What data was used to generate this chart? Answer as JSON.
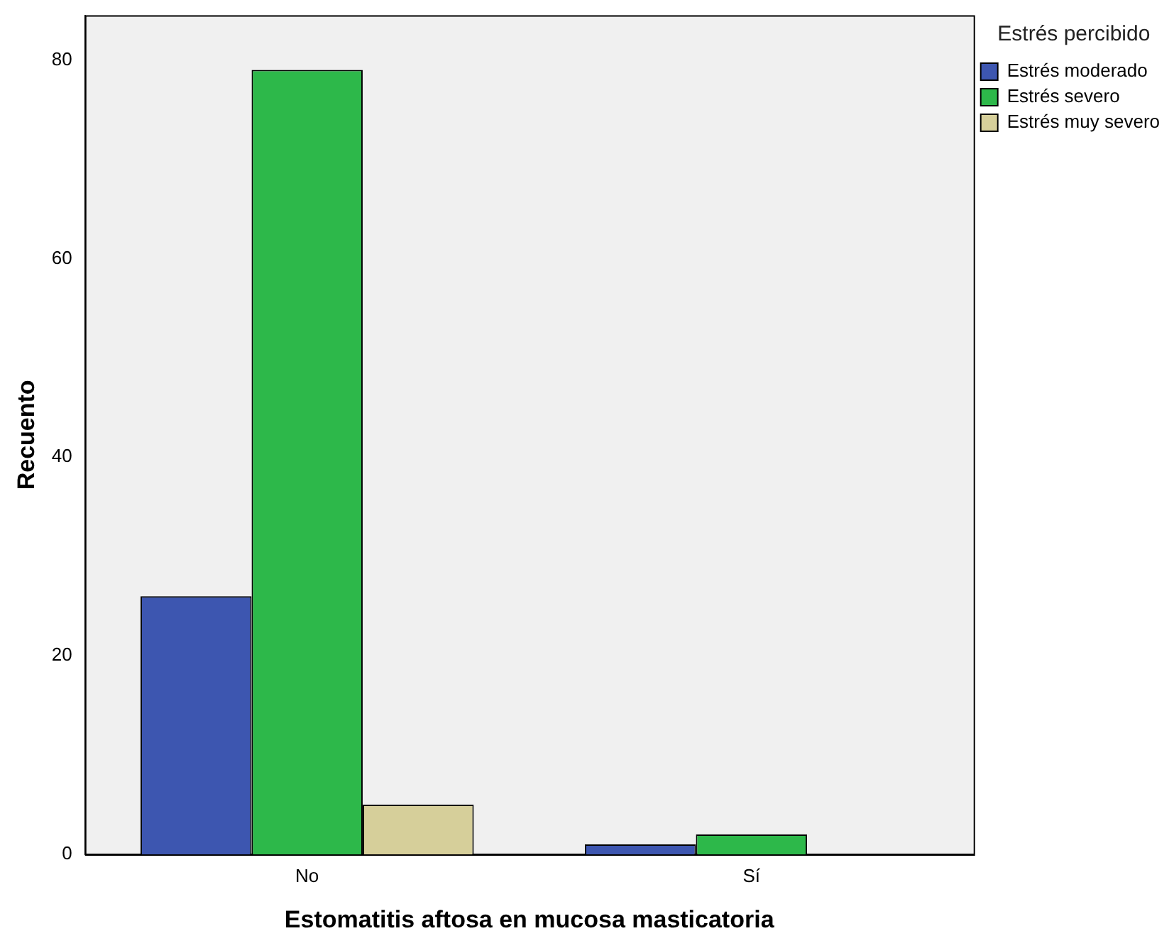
{
  "chart_data": {
    "type": "bar",
    "xlabel": "Estomatitis aftosa en mucosa masticatoria",
    "ylabel": "Recuento",
    "legend_title": "Estrés percibido",
    "categories": [
      "No",
      "Sí"
    ],
    "series": [
      {
        "name": "Estrés moderado",
        "color": "#3d56b0",
        "values": [
          26,
          1
        ]
      },
      {
        "name": "Estrés severo",
        "color": "#2db84a",
        "values": [
          79,
          2
        ]
      },
      {
        "name": "Estrés muy severo",
        "color": "#d6cf9a",
        "values": [
          5,
          0
        ]
      }
    ],
    "ylim": [
      0,
      84.5
    ],
    "yticks": [
      0,
      20,
      40,
      60,
      80
    ],
    "grid": false,
    "legend": "top right"
  }
}
